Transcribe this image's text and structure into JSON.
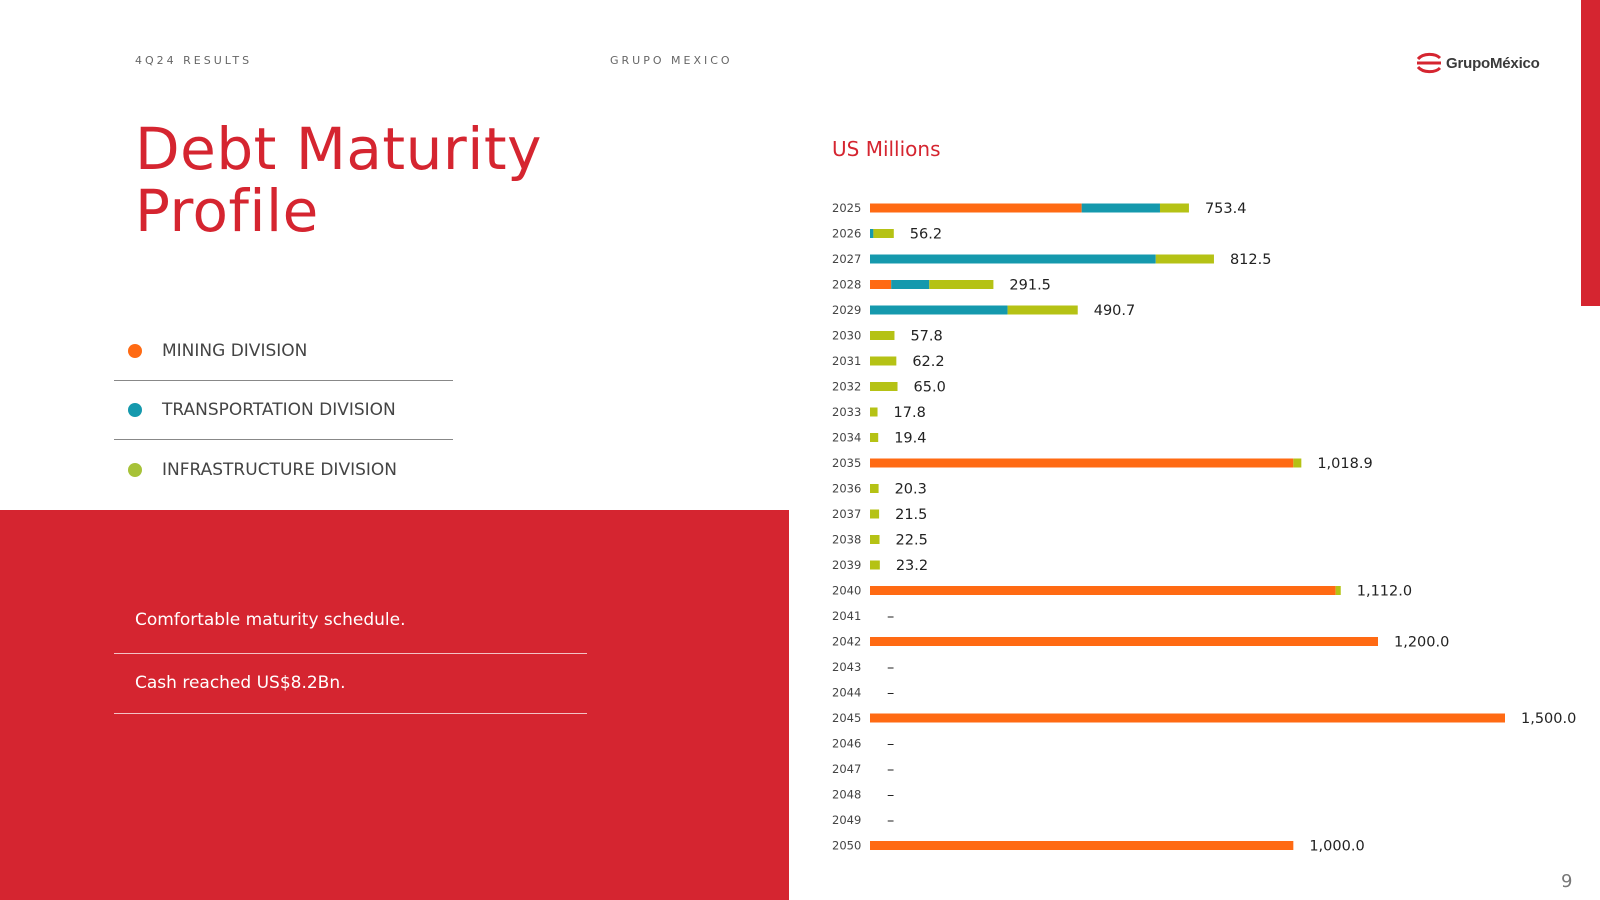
{
  "header": {
    "left": "4Q24 RESULTS",
    "center": "GRUPO MEXICO"
  },
  "logo": {
    "text": "GrupoMéxico",
    "icon": "grupo-mexico-logo-icon"
  },
  "title": {
    "line1": "Debt Maturity",
    "line2": "Profile"
  },
  "legend": [
    {
      "label": "MINING DIVISION",
      "color": "#ff6a13"
    },
    {
      "label": "TRANSPORTATION DIVISION",
      "color": "#1599ad"
    },
    {
      "label": "INFRASTRUCTURE DIVISION",
      "color": "#a7c238"
    }
  ],
  "panel": {
    "items": [
      "Comfortable maturity schedule.",
      "Cash reached US$8.2Bn."
    ]
  },
  "colors": {
    "accent": "#d52530",
    "mining": "#ff6a13",
    "transportation": "#1599ad",
    "infrastructure": "#b5c215"
  },
  "page_number": "9",
  "chart_data": {
    "type": "bar",
    "orientation": "horizontal",
    "stacked": true,
    "unit_label": "US Millions",
    "categories": [
      "2025",
      "2026",
      "2027",
      "2028",
      "2029",
      "2030",
      "2031",
      "2032",
      "2033",
      "2034",
      "2035",
      "2036",
      "2037",
      "2038",
      "2039",
      "2040",
      "2041",
      "2042",
      "2043",
      "2044",
      "2045",
      "2046",
      "2047",
      "2048",
      "2049",
      "2050"
    ],
    "series": [
      {
        "name": "Mining Division",
        "values": [
          500,
          0,
          0,
          50,
          0,
          0,
          0,
          0,
          0,
          0,
          1000,
          0,
          0,
          0,
          0,
          1100,
          0,
          1200,
          0,
          0,
          1500,
          0,
          0,
          0,
          0,
          1000
        ]
      },
      {
        "name": "Transportation Division",
        "values": [
          185,
          8,
          675,
          90,
          325,
          0,
          0,
          0,
          0,
          0,
          0,
          0,
          0,
          0,
          0,
          0,
          0,
          0,
          0,
          0,
          0,
          0,
          0,
          0,
          0,
          0
        ]
      },
      {
        "name": "Infrastructure Division",
        "values": [
          68.4,
          48.2,
          137.5,
          151.5,
          165.7,
          57.8,
          62.2,
          65.0,
          17.8,
          19.4,
          18.9,
          20.3,
          21.5,
          22.5,
          23.2,
          12.0,
          0,
          0,
          0,
          0,
          0,
          0,
          0,
          0,
          0,
          0
        ]
      }
    ],
    "totals": [
      "753.4",
      "56.2",
      "812.5",
      "291.5",
      "490.7",
      "57.8",
      "62.2",
      "65.0",
      "17.8",
      "19.4",
      "1,018.9",
      "20.3",
      "21.5",
      "22.5",
      "23.2",
      "1,112.0",
      "–",
      "1,200.0",
      "–",
      "–",
      "1,500.0",
      "–",
      "–",
      "–",
      "–",
      "1,000.0"
    ],
    "xlim": [
      0,
      1500
    ]
  }
}
